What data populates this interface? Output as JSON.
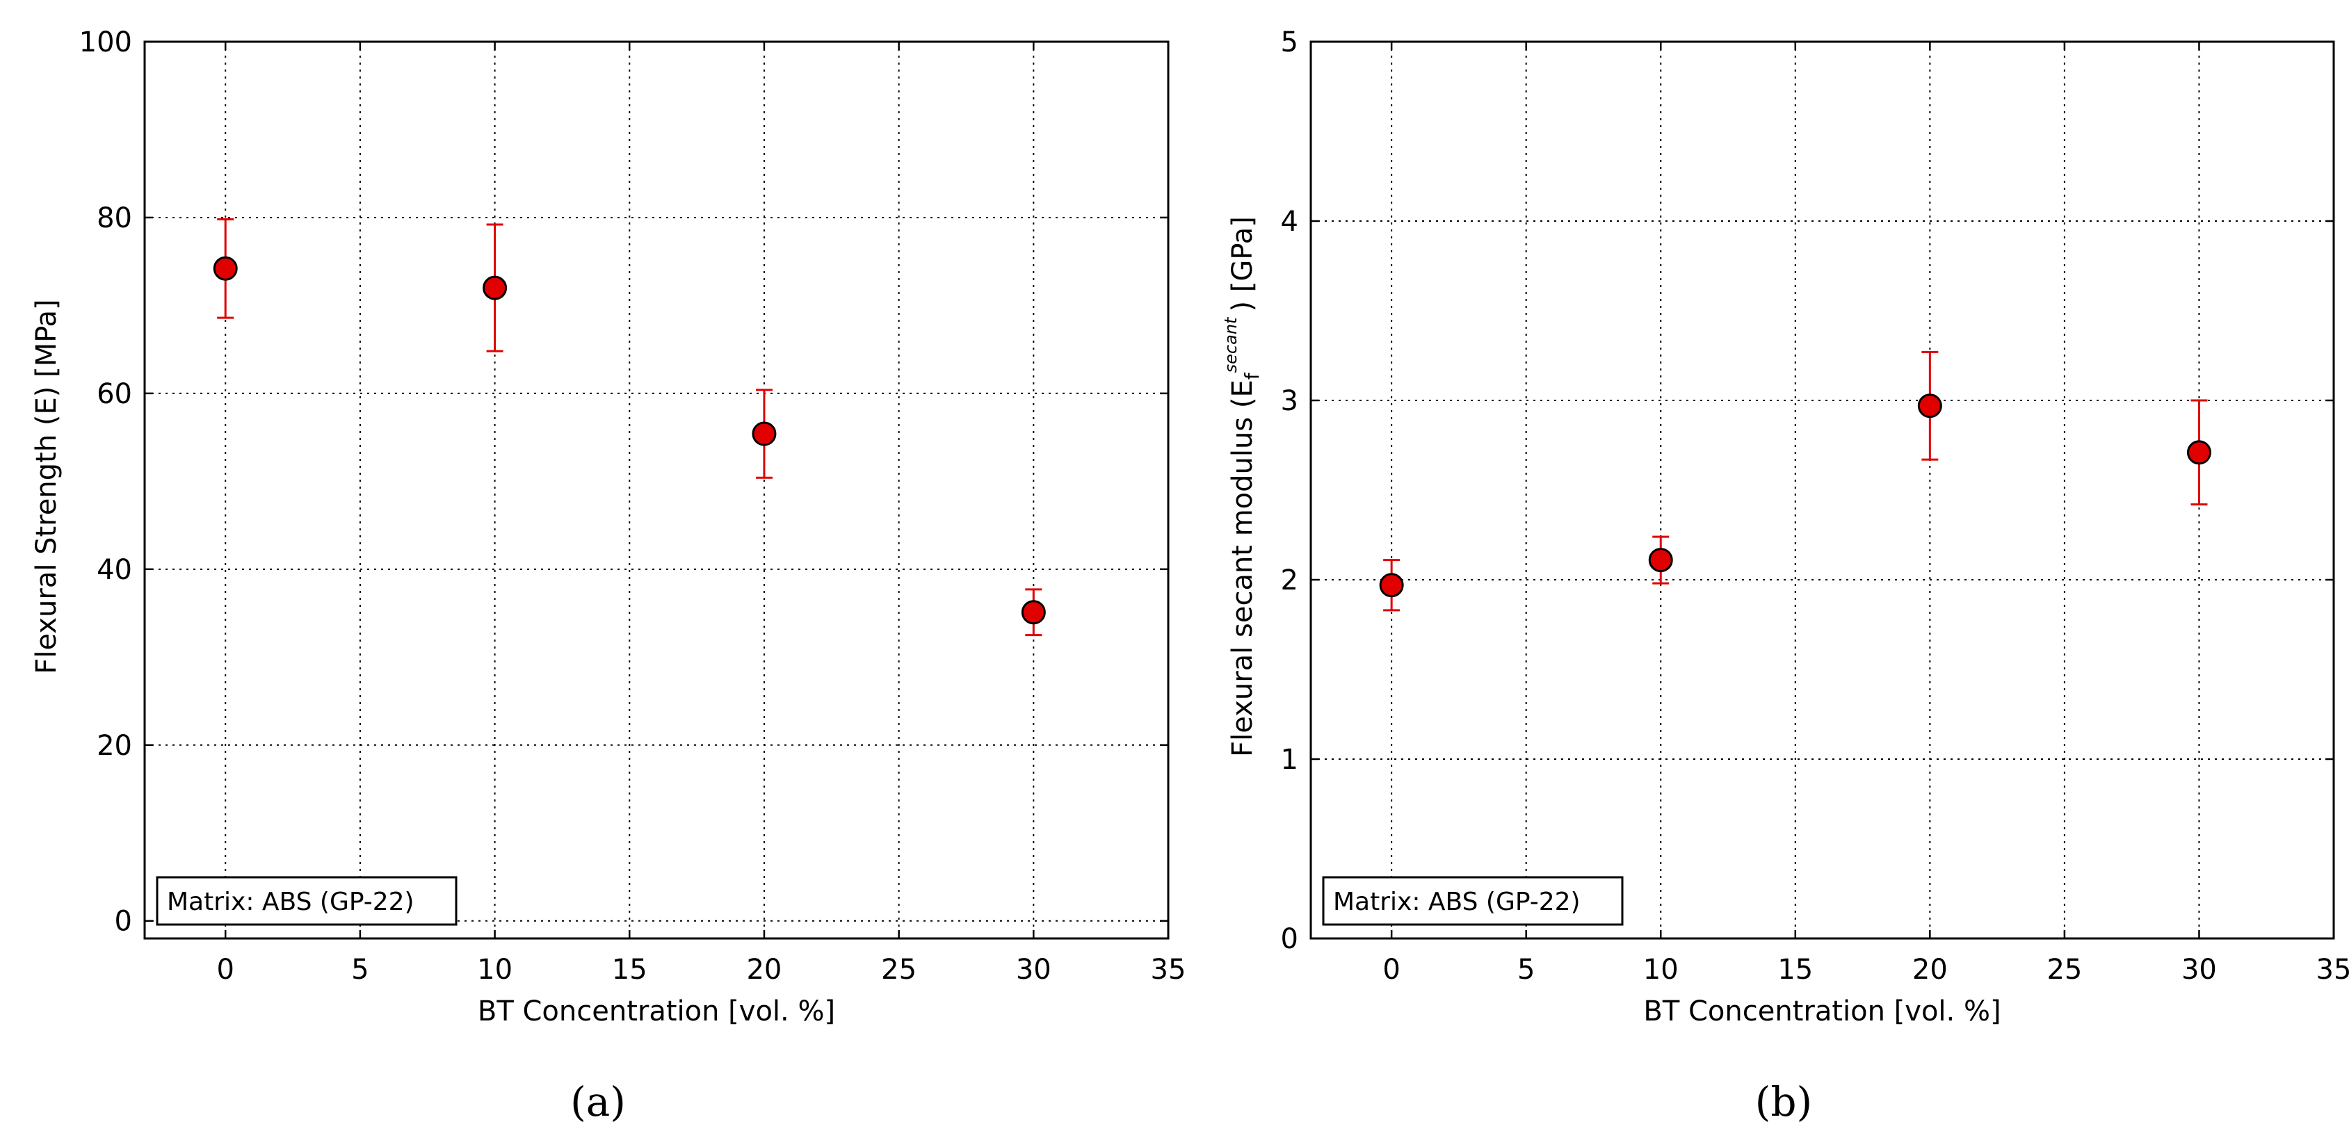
{
  "chart_data": [
    {
      "panel": "(a)",
      "type": "scatter",
      "title": "",
      "xlabel": "BT Concentration [vol. %]",
      "ylabel": "Flexural Strength (E) [MPa]",
      "ylabel_sub": "",
      "ylabel_sup": "",
      "ylabel_tail": "",
      "xlim": [
        -3,
        35
      ],
      "ylim": [
        -2,
        100
      ],
      "xticks": [
        0,
        5,
        10,
        15,
        20,
        25,
        30,
        35
      ],
      "yticks": [
        0,
        20,
        40,
        60,
        80,
        100
      ],
      "grid": true,
      "annotation": "Matrix: ABS (GP-22)",
      "series": [
        {
          "x": [
            0,
            10,
            20,
            30
          ],
          "y": [
            74.2,
            72.0,
            55.4,
            35.1
          ],
          "yerr": [
            5.6,
            7.2,
            5.0,
            2.6
          ],
          "color": "#e00000",
          "ecolor": "#e00000"
        }
      ]
    },
    {
      "panel": "(b)",
      "type": "scatter",
      "title": "",
      "xlabel": "BT Concentration [vol. %]",
      "ylabel": "Flexural secant modulus (E",
      "ylabel_sub": "f",
      "ylabel_sup": "secant",
      "ylabel_tail": ") [GPa]",
      "xlim": [
        -3,
        35
      ],
      "ylim": [
        0,
        5
      ],
      "xticks": [
        0,
        5,
        10,
        15,
        20,
        25,
        30,
        35
      ],
      "yticks": [
        0,
        1,
        2,
        3,
        4,
        5
      ],
      "grid": true,
      "annotation": "Matrix: ABS (GP-22)",
      "series": [
        {
          "x": [
            0,
            10,
            20,
            30
          ],
          "y": [
            1.97,
            2.11,
            2.97,
            2.71
          ],
          "yerr": [
            0.14,
            0.13,
            0.3,
            0.29
          ],
          "color": "#e00000",
          "ecolor": "#e00000"
        }
      ]
    }
  ]
}
